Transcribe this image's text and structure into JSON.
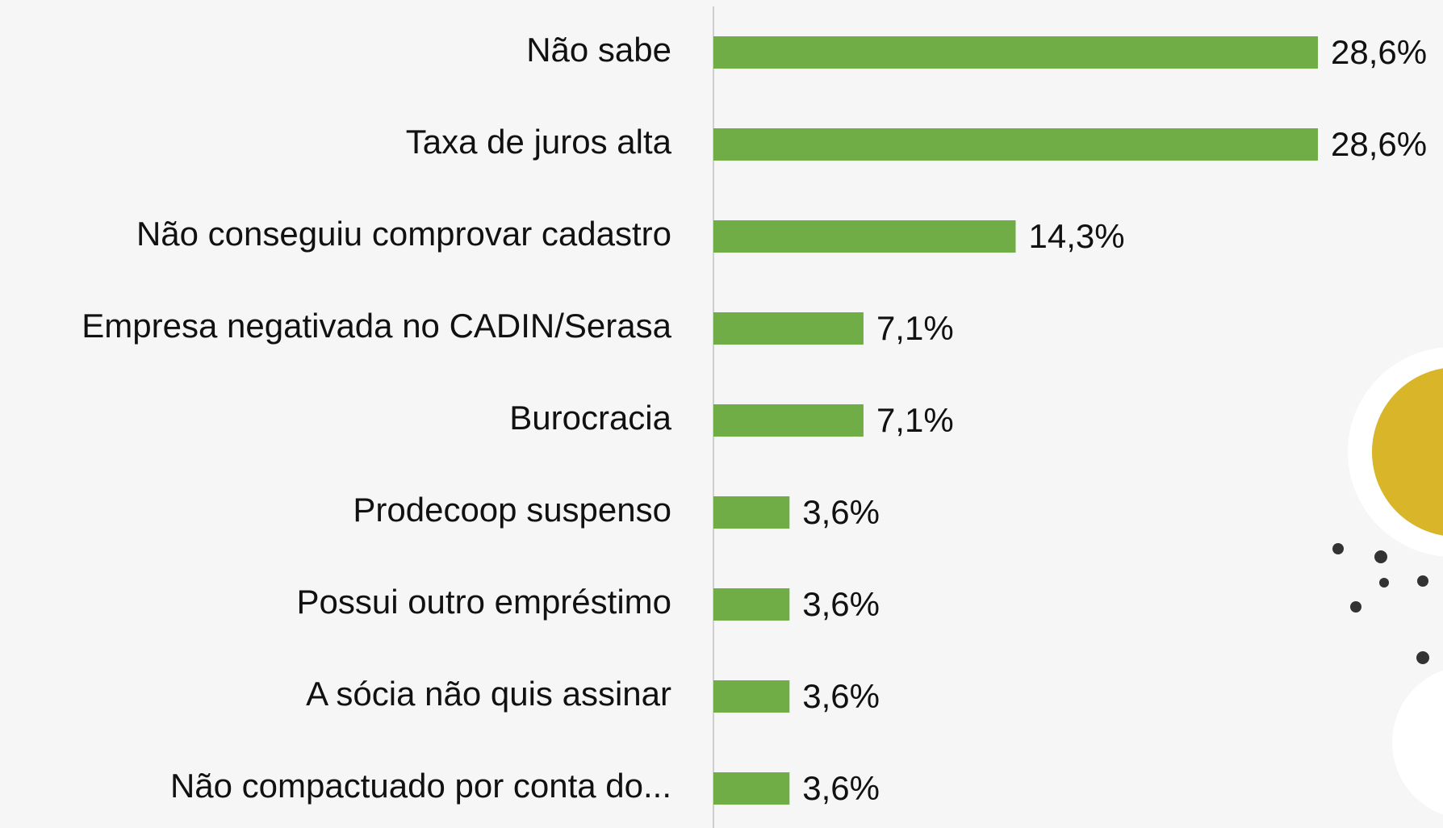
{
  "chart_data": {
    "type": "bar",
    "orientation": "horizontal",
    "categories": [
      "Não sabe",
      "Taxa de juros alta",
      "Não conseguiu comprovar cadastro",
      "Empresa negativada no CADIN/Serasa",
      "Burocracia",
      "Prodecoop suspenso",
      "Possui outro empréstimo",
      "A sócia não quis assinar",
      "Não compactuado por conta do..."
    ],
    "values": [
      28.6,
      28.6,
      14.3,
      7.1,
      7.1,
      3.6,
      3.6,
      3.6,
      3.6
    ],
    "value_labels": [
      "28,6%",
      "28,6%",
      "14,3%",
      "7,1%",
      "7,1%",
      "3,6%",
      "3,6%",
      "3,6%",
      "3,6%"
    ],
    "color": "#70ad47"
  }
}
